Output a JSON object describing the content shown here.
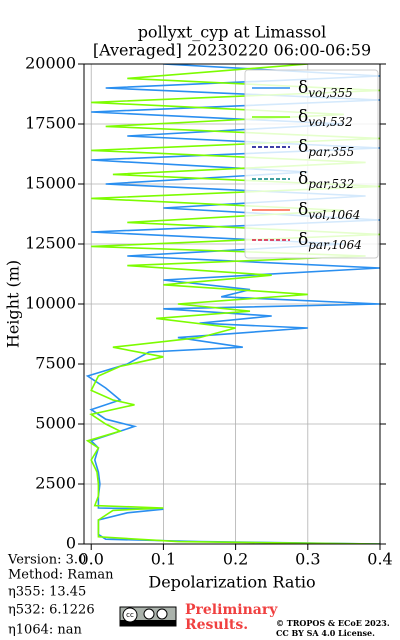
{
  "chart_data": {
    "type": "line",
    "title": "pollyxt_cyp at Limassol",
    "subtitle": "[Averaged] 20230220 06:00-06:59",
    "x_label": "Depolarization Ratio",
    "y_label": "Height (m)",
    "xlim": [
      -0.01,
      0.4
    ],
    "xticks": [
      {
        "value": 0,
        "label": "0.0"
      },
      0.1,
      0.2,
      0.3,
      0.4
    ],
    "ylim": [
      0,
      20000
    ],
    "yticks": [
      0,
      2500,
      5000,
      7500,
      10000,
      12500,
      15000,
      17500,
      20000
    ],
    "grid": true,
    "legend": "upper right",
    "series": [
      {
        "name": "δvol,355",
        "color": "#2a8ff0",
        "dash": "solid",
        "y": [
          0,
          100,
          200,
          400,
          1000,
          1300,
          1450,
          1500,
          2000,
          2500,
          3000,
          3500,
          4000,
          4300,
          4600,
          4900,
          5200,
          5600,
          6000,
          6500,
          7000,
          7500,
          8000,
          8200,
          8600,
          9000,
          9200,
          9500,
          9800,
          10000,
          10300,
          10600,
          11000,
          11500,
          12000,
          12500,
          13000,
          13500,
          14000,
          14500,
          15000,
          15500,
          16000,
          16500,
          17000,
          17500,
          18000,
          18500,
          19000,
          19500,
          20000
        ],
        "values": [
          0.4,
          0.15,
          0.02,
          0.01,
          0.01,
          0.05,
          0.1,
          0.01,
          0.01,
          0.012,
          0.01,
          0.005,
          0.01,
          0.0,
          0.03,
          0.06,
          0.02,
          0.0,
          0.04,
          0.02,
          -0.005,
          0.05,
          0.08,
          0.21,
          0.12,
          0.3,
          0.15,
          0.25,
          0.1,
          0.4,
          0.18,
          0.22,
          0.1,
          0.4,
          0.05,
          0.35,
          0.0,
          0.4,
          0.1,
          0.38,
          0.02,
          0.3,
          0.0,
          0.4,
          0.05,
          0.35,
          0.0,
          0.4,
          0.02,
          0.4,
          0.1
        ]
      },
      {
        "name": "δvol,532",
        "color": "#7cfc00",
        "dash": "solid",
        "y": [
          0,
          100,
          300,
          600,
          1000,
          1400,
          1500,
          1600,
          2000,
          2500,
          3000,
          3500,
          4000,
          4300,
          4700,
          5000,
          5400,
          5800,
          6000,
          6400,
          7000,
          7400,
          7800,
          8200,
          8600,
          9000,
          9400,
          9700,
          10000,
          10400,
          10800,
          11200,
          11600,
          12000,
          12400,
          12900,
          13400,
          13900,
          14400,
          14900,
          15400,
          15900,
          16400,
          16900,
          17400,
          17900,
          18400,
          18900,
          19400,
          20000
        ],
        "values": [
          0.4,
          0.12,
          0.01,
          0.01,
          0.01,
          0.03,
          0.1,
          0.005,
          0.01,
          0.01,
          0.008,
          0.0,
          0.01,
          -0.005,
          0.04,
          0.02,
          0.0,
          0.06,
          0.03,
          0.0,
          0.01,
          0.04,
          0.1,
          0.03,
          0.15,
          0.2,
          0.09,
          0.22,
          0.12,
          0.3,
          0.1,
          0.25,
          0.05,
          0.38,
          0.0,
          0.4,
          0.05,
          0.35,
          0.0,
          0.4,
          0.03,
          0.38,
          0.0,
          0.4,
          0.02,
          0.35,
          0.0,
          0.4,
          0.05,
          0.3
        ]
      },
      {
        "name": "δpar,355",
        "color": "#00008b",
        "dash": "dashed",
        "y": [],
        "values": []
      },
      {
        "name": "δpar,532",
        "color": "#008080",
        "dash": "dashed",
        "y": [],
        "values": []
      },
      {
        "name": "δvol,1064",
        "color": "#ff6347",
        "dash": "solid",
        "y": [],
        "values": []
      },
      {
        "name": "δpar,1064",
        "color": "#dc143c",
        "dash": "dashed",
        "y": [],
        "values": []
      }
    ],
    "notes": [
      "Version: 3.0",
      "Method: Raman",
      "η355:  13.45",
      "η532: 6.1226",
      "η1064:    nan"
    ],
    "watermark": [
      "Preliminary",
      "Results."
    ],
    "copyright": [
      "© TROPOS & ECoE 2023.",
      "CC BY SA 4.0 License."
    ]
  }
}
